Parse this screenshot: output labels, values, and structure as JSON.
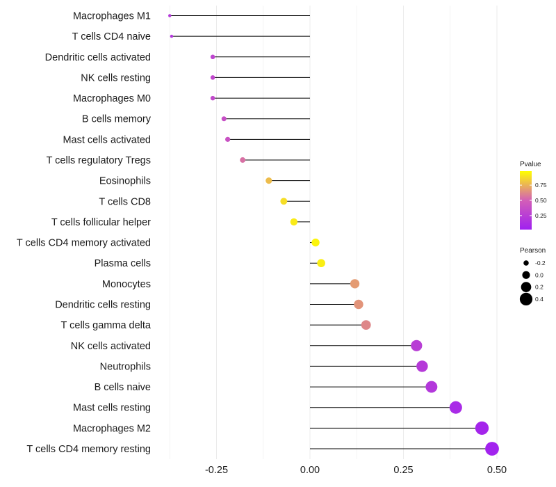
{
  "chart_data": {
    "type": "lollipop",
    "xlabel": "",
    "ylabel": "",
    "xlim": [
      -0.375,
      0.5
    ],
    "x_ticks": [
      -0.25,
      0.0,
      0.25,
      0.5
    ],
    "x_tick_labels": [
      "-0.25",
      "0.00",
      "0.25",
      "0.50"
    ],
    "grid": true,
    "categories": [
      "Macrophages M1",
      "T cells CD4 naive",
      "Dendritic cells activated",
      "NK cells resting",
      "Macrophages M0",
      "B cells memory",
      "Mast cells activated",
      "T cells regulatory  Tregs ",
      "Eosinophils",
      "T cells CD8",
      "T cells follicular helper",
      "T cells CD4 memory activated",
      "Plasma cells",
      "Monocytes",
      "Dendritic cells resting",
      "T cells gamma delta",
      "NK cells activated",
      "Neutrophils",
      "B cells naive",
      "Mast cells resting",
      "Macrophages M2",
      "T cells CD4 memory resting"
    ],
    "pearson": [
      -0.375,
      -0.37,
      -0.26,
      -0.26,
      -0.26,
      -0.23,
      -0.22,
      -0.18,
      -0.11,
      -0.07,
      -0.043,
      0.015,
      0.03,
      0.12,
      0.13,
      0.15,
      0.285,
      0.3,
      0.325,
      0.39,
      0.46,
      0.487
    ],
    "pvalue": [
      0.21,
      0.2,
      0.3,
      0.32,
      0.33,
      0.38,
      0.4,
      0.55,
      0.78,
      0.88,
      0.92,
      0.95,
      0.93,
      0.68,
      0.66,
      0.62,
      0.25,
      0.22,
      0.2,
      0.1,
      0.06,
      0.04
    ],
    "legends": {
      "color": {
        "title": "Pvalue",
        "ticks": [
          0.75,
          0.5,
          0.25
        ],
        "tick_labels": [
          "0.75",
          "0.50",
          "0.25"
        ],
        "range": [
          0.02,
          0.98
        ],
        "low_color": "#a020f0",
        "mid_color": "#d35fb7",
        "high_color": "#ffff00"
      },
      "size": {
        "title": "Pearson",
        "values": [
          -0.2,
          0.0,
          0.2,
          0.4
        ],
        "labels": [
          "-0.2",
          "0.0",
          "0.2",
          "0.4"
        ]
      }
    },
    "colors": {
      "stem": "#000000",
      "grid": "#ebebeb"
    }
  }
}
